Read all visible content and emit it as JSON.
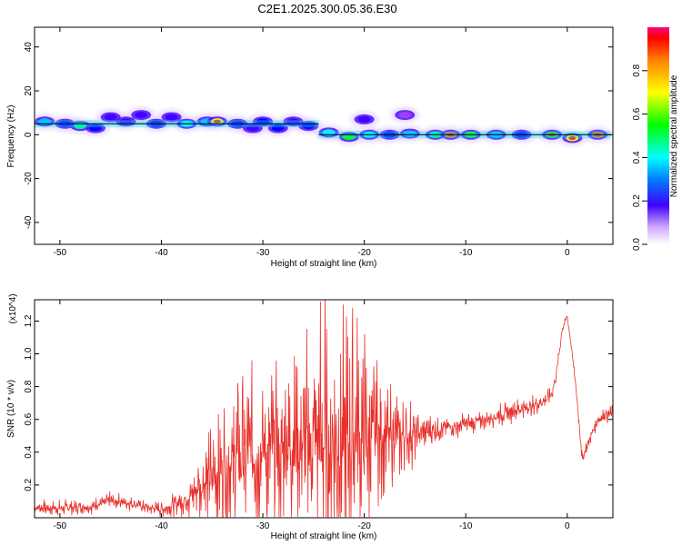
{
  "title": "C2E1.2025.300.05.36.E30",
  "chart_data": [
    {
      "type": "heatmap",
      "xlabel": "Height of straight line (km)",
      "ylabel": "Frequency (Hz)",
      "xlim": [
        -52.5,
        4.5
      ],
      "ylim": [
        -50,
        49
      ],
      "x_ticks": [
        -50,
        -40,
        -30,
        -20,
        -10,
        0
      ],
      "y_ticks": [
        -40,
        -20,
        0,
        20,
        40
      ],
      "colorbar": {
        "label": "Normalized spectral amplitude",
        "range": [
          0,
          1
        ],
        "ticks": [
          "0.0",
          "0.2",
          "0.4",
          "0.6",
          "0.8"
        ]
      },
      "colors": [
        "#ffffff",
        "#e0c8ff",
        "#a040ff",
        "#4000ff",
        "#0000ff",
        "#00c0ff",
        "#00ffff",
        "#00ff80",
        "#00ff00",
        "#ffff00",
        "#ff8000",
        "#ff0000"
      ],
      "line_segments": [
        {
          "from_km": -52.5,
          "to_km": -24.5,
          "freq_hz": 5
        },
        {
          "from_km": -24.5,
          "to_km": 4.3,
          "freq_hz": 0
        }
      ],
      "blobs": [
        {
          "x": -51.5,
          "y": 6,
          "v": 0.45
        },
        {
          "x": -49.5,
          "y": 5,
          "v": 0.35
        },
        {
          "x": -48,
          "y": 4,
          "v": 0.6
        },
        {
          "x": -46.5,
          "y": 3,
          "v": 0.4
        },
        {
          "x": -45,
          "y": 8,
          "v": 0.3
        },
        {
          "x": -43.5,
          "y": 6,
          "v": 0.3
        },
        {
          "x": -42,
          "y": 9,
          "v": 0.25
        },
        {
          "x": -40.5,
          "y": 5,
          "v": 0.35
        },
        {
          "x": -39,
          "y": 8,
          "v": 0.3
        },
        {
          "x": -37.5,
          "y": 5,
          "v": 0.55
        },
        {
          "x": -35.5,
          "y": 6,
          "v": 0.45
        },
        {
          "x": -34.5,
          "y": 6,
          "v": 0.85
        },
        {
          "x": -32.5,
          "y": 5,
          "v": 0.4
        },
        {
          "x": -31,
          "y": 3,
          "v": 0.3
        },
        {
          "x": -30,
          "y": 6,
          "v": 0.35
        },
        {
          "x": -28.5,
          "y": 3,
          "v": 0.4
        },
        {
          "x": -27,
          "y": 6,
          "v": 0.3
        },
        {
          "x": -25.5,
          "y": 4,
          "v": 0.35
        },
        {
          "x": -23.5,
          "y": 1,
          "v": 0.5
        },
        {
          "x": -21.5,
          "y": -1,
          "v": 0.7
        },
        {
          "x": -19.5,
          "y": 0,
          "v": 0.5
        },
        {
          "x": -17.5,
          "y": 0,
          "v": 0.4
        },
        {
          "x": -15.5,
          "y": 0.5,
          "v": 0.45
        },
        {
          "x": -13,
          "y": 0,
          "v": 0.6
        },
        {
          "x": -11.5,
          "y": 0,
          "v": 0.95
        },
        {
          "x": -9.5,
          "y": 0,
          "v": 0.7
        },
        {
          "x": -7,
          "y": 0,
          "v": 0.45
        },
        {
          "x": -4.5,
          "y": 0,
          "v": 0.4
        },
        {
          "x": -1.5,
          "y": 0,
          "v": 0.75
        },
        {
          "x": 0.5,
          "y": -1.5,
          "v": 0.8
        },
        {
          "x": 3,
          "y": 0,
          "v": 0.9
        },
        {
          "x": -20,
          "y": 7,
          "v": 0.3
        },
        {
          "x": -16,
          "y": 9,
          "v": 0.2
        }
      ]
    },
    {
      "type": "line",
      "xlabel": "Height of straight line (km)",
      "ylabel": "SNR (10 * v/v)",
      "y_scale_label": "(x10^4)",
      "xlim": [
        -52.5,
        4.5
      ],
      "ylim": [
        0,
        1.33
      ],
      "x_ticks": [
        -50,
        -40,
        -30,
        -20,
        -10,
        0
      ],
      "y_ticks": [
        0.2,
        0.4,
        0.6,
        0.8,
        1.0,
        1.2
      ],
      "series": [
        {
          "color": "#e8302a",
          "envelope": {
            "x": [
              -52.5,
              -50,
              -47,
              -45,
              -44,
              -42,
              -40,
              -38,
              -36,
              -34,
              -32,
              -30,
              -28,
              -26,
              -25,
              -24,
              -23,
              -22,
              -21,
              -20,
              -19,
              -18,
              -16,
              -14,
              -12,
              -10,
              -8,
              -6,
              -4,
              -2,
              -1.5,
              -1,
              -0.5,
              0,
              0.5,
              1,
              1.5,
              2,
              3,
              4.5
            ],
            "base": [
              0.06,
              0.06,
              0.07,
              0.1,
              0.1,
              0.07,
              0.05,
              0.1,
              0.2,
              0.3,
              0.38,
              0.4,
              0.42,
              0.45,
              0.45,
              0.45,
              0.45,
              0.45,
              0.45,
              0.46,
              0.5,
              0.5,
              0.5,
              0.52,
              0.55,
              0.57,
              0.6,
              0.64,
              0.67,
              0.72,
              0.76,
              0.9,
              1.15,
              1.23,
              1.0,
              0.7,
              0.35,
              0.45,
              0.6,
              0.64
            ],
            "amp": [
              0.05,
              0.05,
              0.05,
              0.06,
              0.05,
              0.04,
              0.05,
              0.1,
              0.25,
              0.45,
              0.55,
              0.55,
              0.5,
              0.65,
              0.8,
              1.0,
              0.9,
              0.95,
              0.85,
              0.75,
              0.55,
              0.35,
              0.25,
              0.12,
              0.08,
              0.07,
              0.07,
              0.07,
              0.07,
              0.06,
              0.05,
              0.05,
              0.03,
              0.02,
              0.02,
              0.03,
              0.05,
              0.05,
              0.05,
              0.05
            ]
          }
        }
      ]
    }
  ]
}
